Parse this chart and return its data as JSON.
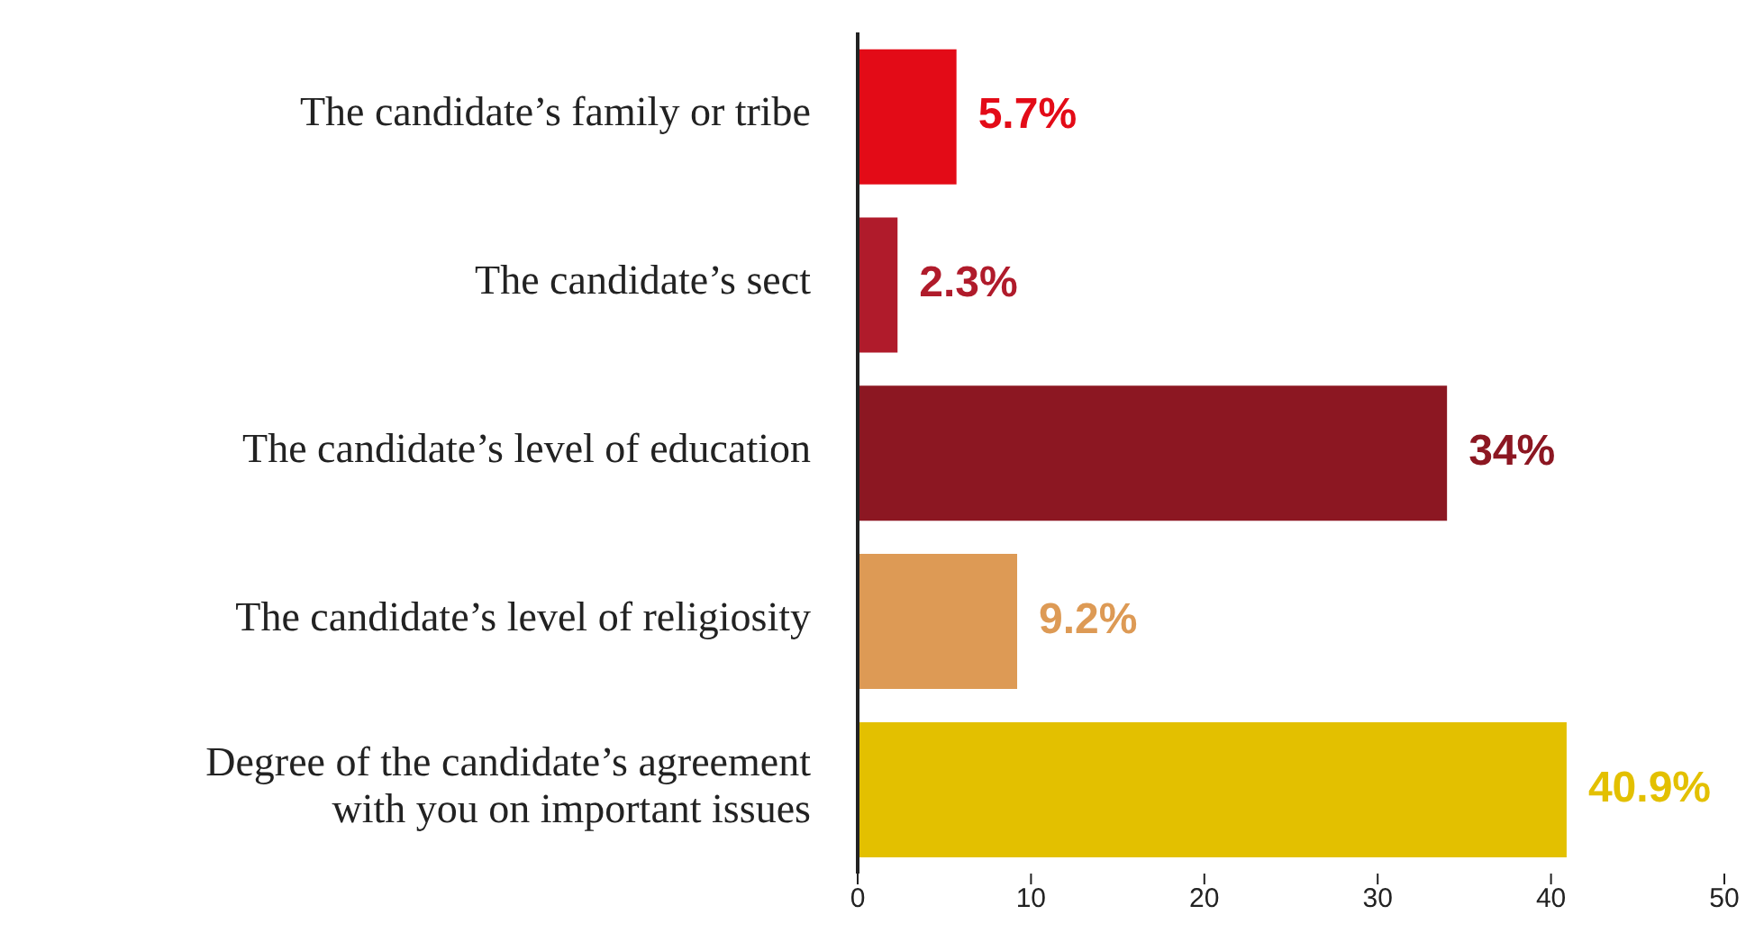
{
  "chart_data": {
    "type": "bar",
    "orientation": "horizontal",
    "categories": [
      "The candidate’s family or tribe",
      "The candidate’s sect",
      "The candidate’s level of education",
      "The candidate’s level of religiosity",
      "Degree of the candidate’s agreement with you on important issues"
    ],
    "values": [
      5.7,
      2.3,
      34,
      9.2,
      40.9
    ],
    "colors": [
      "#e30b17",
      "#b01b2b",
      "#8c1722",
      "#dd9a55",
      "#e3c000"
    ],
    "value_labels": [
      "5.7%",
      "2.3%",
      "34%",
      "9.2%",
      "40.9%"
    ],
    "xlim": [
      0,
      50
    ],
    "xticks": [
      0,
      10,
      20,
      30,
      40,
      50
    ],
    "grid": false,
    "legend": false
  }
}
